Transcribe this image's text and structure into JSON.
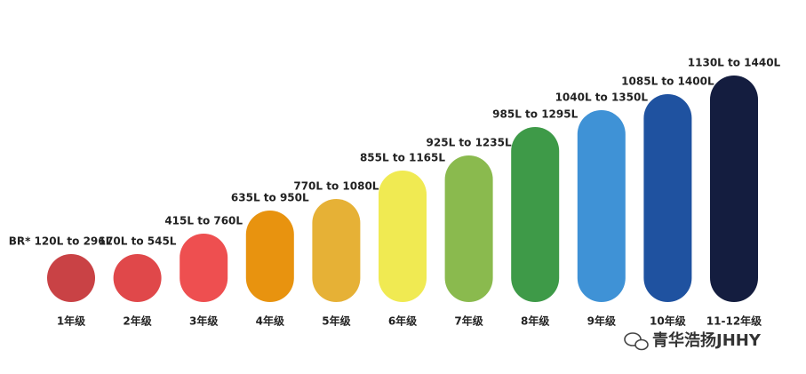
{
  "items": [
    {
      "range": "BR* 120L to 296L",
      "grade": "1年级",
      "color": "#c94245"
    },
    {
      "range": "170L to 545L",
      "grade": "2年级",
      "color": "#e0484a"
    },
    {
      "range": "415L to 760L",
      "grade": "3年级",
      "color": "#ee4f50"
    },
    {
      "range": "635L to 950L",
      "grade": "4年级",
      "color": "#e8930f"
    },
    {
      "range": "770L to 1080L",
      "grade": "5年级",
      "color": "#e6b136"
    },
    {
      "range": "855L to 1165L",
      "grade": "6年级",
      "color": "#f0ea52"
    },
    {
      "range": "925L to 1235L",
      "grade": "7年级",
      "color": "#8aba4e"
    },
    {
      "range": "985L to 1295L",
      "grade": "8年级",
      "color": "#3e9a48"
    },
    {
      "range": "1040L to 1350L",
      "grade": "9年级",
      "color": "#3f92d6"
    },
    {
      "range": "1085L to 1400L",
      "grade": "10年级",
      "color": "#1f52a0"
    },
    {
      "range": "1130L to 1440L",
      "grade": "11-12年级",
      "color": "#141d3f"
    }
  ],
  "watermark": "青华浩扬JHHY"
}
